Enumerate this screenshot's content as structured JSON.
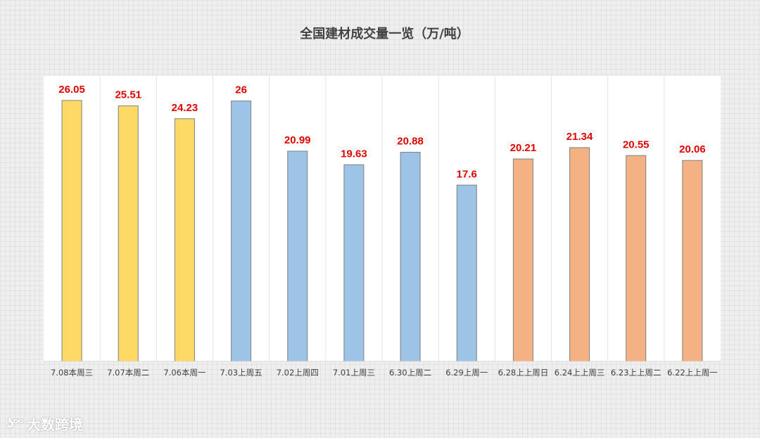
{
  "chart_data": {
    "type": "bar",
    "title": "全国建材成交量一览（万/吨）",
    "categories": [
      "7.08本周三",
      "7.07本周二",
      "7.06本周一",
      "7.03上周五",
      "7.02上周四",
      "7.01上周三",
      "6.30上周二",
      "6.29上周一",
      "6.28上上周日",
      "6.24上上周三",
      "6.23上上周二",
      "6.22上上周一"
    ],
    "values": [
      26.05,
      25.51,
      24.23,
      26,
      20.99,
      19.63,
      20.88,
      17.6,
      20.21,
      21.34,
      20.55,
      20.06
    ],
    "value_labels": [
      "26.05",
      "25.51",
      "24.23",
      "26",
      "20.99",
      "19.63",
      "20.88",
      "17.6",
      "20.21",
      "21.34",
      "20.55",
      "20.06"
    ],
    "bar_colors": [
      "#FFD966",
      "#FFD966",
      "#FFD966",
      "#9DC3E6",
      "#9DC3E6",
      "#9DC3E6",
      "#9DC3E6",
      "#9DC3E6",
      "#F4B183",
      "#F4B183",
      "#F4B183",
      "#F4B183"
    ],
    "label_color": "#E00000",
    "ylim": [
      0,
      28.5
    ],
    "xlabel": "",
    "ylabel": "",
    "grid": false,
    "legend": "none"
  },
  "watermark": {
    "text": "大数跨境"
  }
}
